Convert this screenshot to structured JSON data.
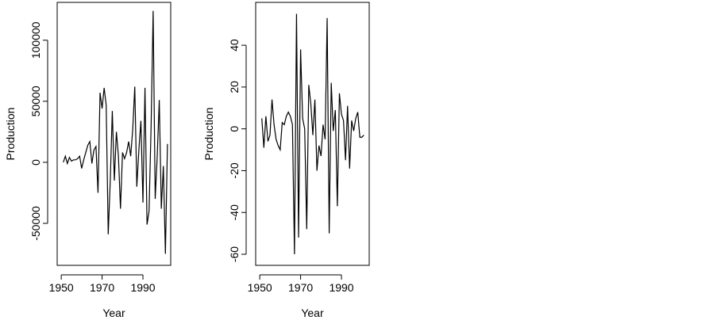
{
  "chart_data": [
    {
      "type": "line",
      "xlabel": "Year",
      "ylabel": "Production",
      "x": [
        1951,
        1952,
        1953,
        1954,
        1955,
        1956,
        1957,
        1958,
        1959,
        1960,
        1961,
        1962,
        1963,
        1964,
        1965,
        1966,
        1967,
        1968,
        1969,
        1970,
        1971,
        1972,
        1973,
        1974,
        1975,
        1976,
        1977,
        1978,
        1979,
        1980,
        1981,
        1982,
        1983,
        1984,
        1985,
        1986,
        1987,
        1988,
        1989,
        1990,
        1991,
        1992,
        1993,
        1994,
        1995,
        1996,
        1997,
        1998,
        1999,
        2000,
        2001,
        2002
      ],
      "series": [
        {
          "color": "#000000",
          "values": [
            0,
            5000,
            -1000,
            4000,
            1000,
            2000,
            2000,
            3000,
            5000,
            -5000,
            2000,
            8000,
            14000,
            17000,
            -1000,
            10000,
            13000,
            -25000,
            57000,
            44000,
            61000,
            47000,
            -59000,
            -15000,
            42000,
            -15000,
            25000,
            5000,
            -38000,
            8000,
            3000,
            8000,
            17000,
            5000,
            27000,
            62000,
            -20000,
            10000,
            34000,
            -33000,
            61000,
            -51000,
            -40000,
            30000,
            124000,
            -30000,
            5000,
            51000,
            -38000,
            -3000,
            -75000,
            15000
          ]
        }
      ],
      "xlim": [
        1948,
        2003.6
      ],
      "xticks": [
        1950,
        1970,
        1990
      ],
      "ylim": [
        -84400,
        131000
      ],
      "yticks": [
        -50000,
        0,
        50000,
        100000
      ]
    },
    {
      "type": "line",
      "xlabel": "Year",
      "ylabel": "Production",
      "x": [
        1951,
        1952,
        1953,
        1954,
        1955,
        1956,
        1957,
        1958,
        1959,
        1960,
        1961,
        1962,
        1963,
        1964,
        1965,
        1966,
        1967,
        1968,
        1969,
        1970,
        1971,
        1972,
        1973,
        1974,
        1975,
        1976,
        1977,
        1978,
        1979,
        1980,
        1981,
        1982,
        1983,
        1984,
        1985,
        1986,
        1987,
        1988,
        1989,
        1990,
        1991,
        1992,
        1993,
        1994,
        1995,
        1996,
        1997,
        1998,
        1999,
        2000,
        2001
      ],
      "series": [
        {
          "color": "#000000",
          "values": [
            5,
            -9,
            6,
            -6,
            -3,
            14,
            2,
            -5,
            -8,
            -10,
            3,
            2,
            6,
            8,
            6,
            2,
            -60,
            55,
            -52,
            38,
            5,
            0,
            -48,
            21,
            12,
            -3,
            14,
            -20,
            -8,
            -13,
            2,
            -5,
            53,
            -50,
            22,
            -1,
            9,
            -37,
            17,
            7,
            4,
            -15,
            11,
            -19,
            4,
            -1,
            5,
            8,
            -4,
            -4,
            -3
          ]
        }
      ],
      "xlim": [
        1948,
        2003.6
      ],
      "xticks": [
        1950,
        1970,
        1990
      ],
      "ylim": [
        -65.3,
        60.5
      ],
      "yticks": [
        -60,
        -40,
        -20,
        0,
        20,
        40
      ]
    }
  ]
}
